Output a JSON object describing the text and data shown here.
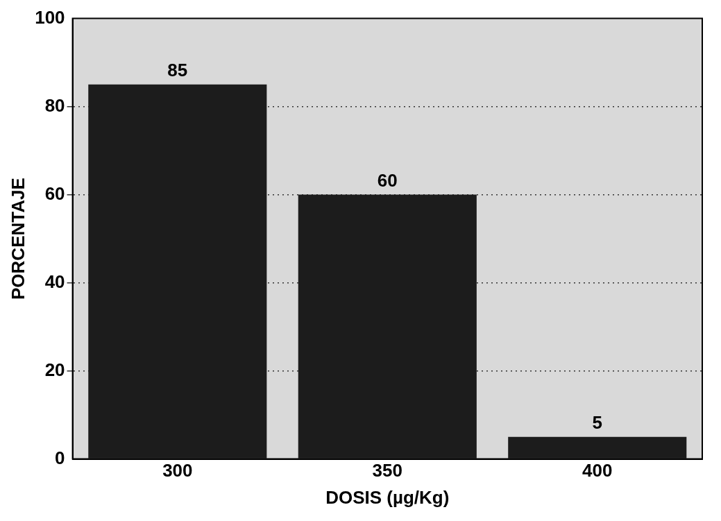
{
  "chart_data": {
    "type": "bar",
    "xlabel": "DOSIS (µg/Kg)",
    "ylabel": "PORCENTAJE",
    "categories": [
      "300",
      "350",
      "400"
    ],
    "values": [
      85,
      60,
      5
    ],
    "color": "#1c1c1c",
    "ylim": [
      0,
      100
    ],
    "yticks": [
      0,
      20,
      40,
      60,
      80,
      100
    ],
    "grid": "y",
    "data_labels": true
  }
}
